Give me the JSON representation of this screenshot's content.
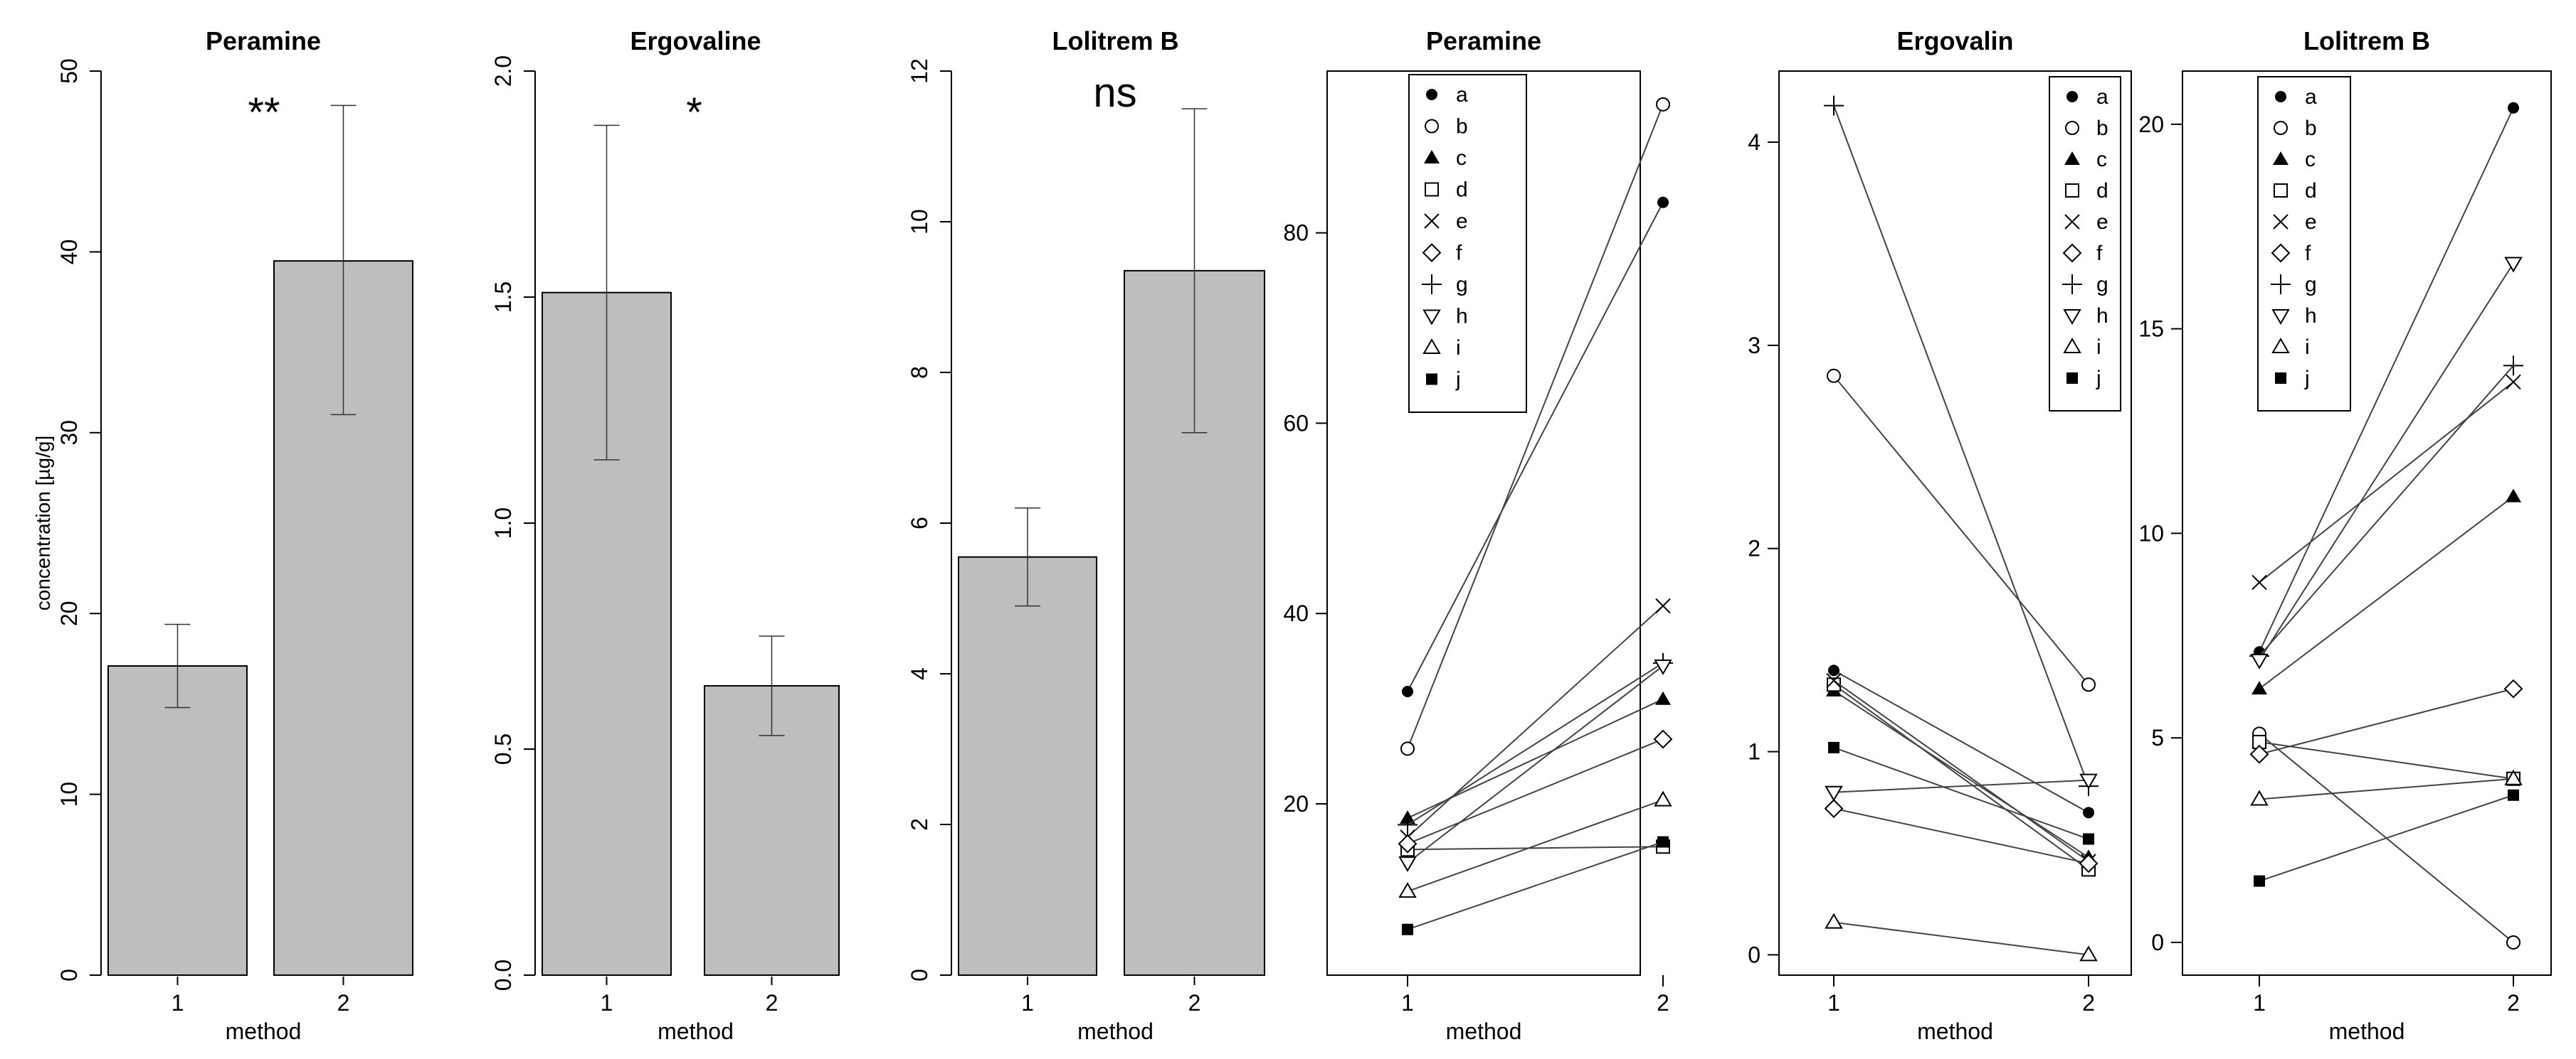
{
  "chart_data": [
    {
      "type": "bar",
      "title": "Peramine",
      "categories": [
        "1",
        "2"
      ],
      "values": [
        17.1,
        39.5
      ],
      "error_low": [
        14.8,
        31.0
      ],
      "error_high": [
        19.4,
        48.1
      ],
      "ylim": [
        0,
        50
      ],
      "yticks": [
        "0",
        "10",
        "20",
        "30",
        "40",
        "50"
      ],
      "xlabel": "method",
      "ylabel": "concentration [µg/g]",
      "significance": "**",
      "bar_color": "#bebebe"
    },
    {
      "type": "bar",
      "title": "Ergovaline",
      "categories": [
        "1",
        "2"
      ],
      "values": [
        1.51,
        0.64
      ],
      "error_low": [
        1.14,
        0.53
      ],
      "error_high": [
        1.88,
        0.75
      ],
      "ylim": [
        0,
        2.0
      ],
      "yticks": [
        "0.0",
        "0.5",
        "1.0",
        "1.5",
        "2.0"
      ],
      "xlabel": "method",
      "ylabel": "",
      "significance": "*",
      "bar_color": "#bebebe"
    },
    {
      "type": "bar",
      "title": "Lolitrem B",
      "categories": [
        "1",
        "2"
      ],
      "values": [
        5.55,
        9.35
      ],
      "error_low": [
        4.9,
        7.2
      ],
      "error_high": [
        6.2,
        11.5
      ],
      "ylim": [
        0,
        12
      ],
      "yticks": [
        "0",
        "2",
        "4",
        "6",
        "8",
        "10",
        "12"
      ],
      "xlabel": "method",
      "ylabel": "",
      "significance": "ns",
      "bar_color": "#bebebe"
    },
    {
      "type": "line",
      "title": "Peramine",
      "x": [
        "1",
        "2"
      ],
      "ylim": [
        2,
        97
      ],
      "yticks": [
        20,
        40,
        60,
        80
      ],
      "xlabel": "method",
      "legend_position": "top-left",
      "series": [
        {
          "name": "a",
          "values": [
            31.8,
            83.2
          ]
        },
        {
          "name": "b",
          "values": [
            25.8,
            93.5
          ]
        },
        {
          "name": "c",
          "values": [
            18.5,
            31.0
          ]
        },
        {
          "name": "d",
          "values": [
            15.2,
            15.5
          ]
        },
        {
          "name": "e",
          "values": [
            16.5,
            40.8
          ]
        },
        {
          "name": "f",
          "values": [
            15.8,
            26.8
          ]
        },
        {
          "name": "g",
          "values": [
            17.8,
            34.8
          ]
        },
        {
          "name": "h",
          "values": [
            13.8,
            34.5
          ]
        },
        {
          "name": "i",
          "values": [
            10.8,
            20.4
          ]
        },
        {
          "name": "j",
          "values": [
            6.8,
            16.0
          ]
        }
      ]
    },
    {
      "type": "line",
      "title": "Ergovalin",
      "x": [
        "1",
        "2"
      ],
      "ylim": [
        -0.1,
        4.35
      ],
      "yticks": [
        0,
        1,
        2,
        3,
        4
      ],
      "xlabel": "method",
      "legend_position": "top-right",
      "series": [
        {
          "name": "a",
          "values": [
            1.4,
            0.7
          ]
        },
        {
          "name": "b",
          "values": [
            2.85,
            1.33
          ]
        },
        {
          "name": "c",
          "values": [
            1.3,
            0.48
          ]
        },
        {
          "name": "d",
          "values": [
            1.33,
            0.42
          ]
        },
        {
          "name": "e",
          "values": [
            1.35,
            0.46
          ]
        },
        {
          "name": "f",
          "values": [
            0.72,
            0.45
          ]
        },
        {
          "name": "g",
          "values": [
            4.18,
            0.83
          ]
        },
        {
          "name": "h",
          "values": [
            0.8,
            0.86
          ]
        },
        {
          "name": "i",
          "values": [
            0.16,
            0.0
          ]
        },
        {
          "name": "j",
          "values": [
            1.02,
            0.57
          ]
        }
      ]
    },
    {
      "type": "line",
      "title": "Lolitrem B",
      "x": [
        "1",
        "2"
      ],
      "ylim": [
        -0.8,
        21.3
      ],
      "yticks": [
        0,
        5,
        10,
        15,
        20
      ],
      "xlabel": "method",
      "legend_position": "top-left",
      "series": [
        {
          "name": "a",
          "values": [
            7.1,
            20.4
          ]
        },
        {
          "name": "b",
          "values": [
            5.1,
            0.0
          ]
        },
        {
          "name": "c",
          "values": [
            6.2,
            10.9
          ]
        },
        {
          "name": "d",
          "values": [
            4.9,
            4.0
          ]
        },
        {
          "name": "e",
          "values": [
            8.8,
            13.7
          ]
        },
        {
          "name": "f",
          "values": [
            4.6,
            6.2
          ]
        },
        {
          "name": "g",
          "values": [
            7.0,
            14.1
          ]
        },
        {
          "name": "h",
          "values": [
            6.9,
            16.6
          ]
        },
        {
          "name": "i",
          "values": [
            3.5,
            4.0
          ]
        },
        {
          "name": "j",
          "values": [
            1.5,
            3.6
          ]
        }
      ]
    }
  ]
}
